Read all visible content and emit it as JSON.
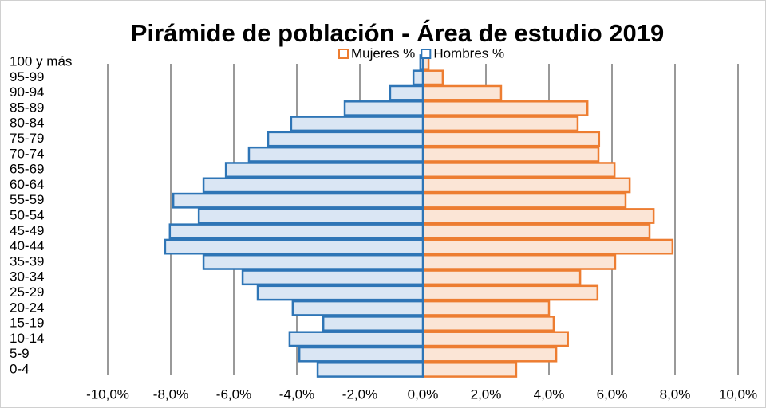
{
  "chart_data": {
    "type": "pyramid",
    "title": "Pirámide de población - Área de estudio 2019",
    "categories": [
      "0-4",
      "5-9",
      "10-14",
      "15-19",
      "20-24",
      "25-29",
      "30-34",
      "35-39",
      "40-44",
      "45-49",
      "50-54",
      "55-59",
      "60-64",
      "65-69",
      "70-74",
      "75-79",
      "80-84",
      "85-89",
      "90-94",
      "95-99",
      "100 y más"
    ],
    "series": [
      {
        "name": "Mujeres %",
        "color": "#ed7d31",
        "fill": "#fbe5d6",
        "values": [
          2.96,
          4.23,
          4.6,
          4.15,
          4.0,
          5.54,
          4.99,
          6.1,
          7.92,
          7.19,
          7.32,
          6.43,
          6.56,
          6.08,
          5.57,
          5.59,
          4.91,
          5.22,
          2.48,
          0.63,
          0.18
        ]
      },
      {
        "name": "Hombres %",
        "color": "#2e75b6",
        "fill": "#dae6f4",
        "values": [
          -3.34,
          -3.92,
          -4.23,
          -3.16,
          -4.13,
          -5.24,
          -5.72,
          -6.96,
          -8.18,
          -8.03,
          -7.11,
          -7.92,
          -6.96,
          -6.25,
          -5.52,
          -4.91,
          -4.18,
          -2.48,
          -1.04,
          -0.3,
          -0.08
        ]
      }
    ],
    "xlim": [
      -10,
      10
    ],
    "xticks": [
      {
        "value": -10,
        "label": "-10,0%"
      },
      {
        "value": -8,
        "label": "-8,0%"
      },
      {
        "value": -6,
        "label": "-6,0%"
      },
      {
        "value": -4,
        "label": "-4,0%"
      },
      {
        "value": -2,
        "label": "-2,0%"
      },
      {
        "value": 0,
        "label": "0,0%"
      },
      {
        "value": 2,
        "label": "2,0%"
      },
      {
        "value": 4,
        "label": "4,0%"
      },
      {
        "value": 6,
        "label": "6,0%"
      },
      {
        "value": 8,
        "label": "8,0%"
      },
      {
        "value": 10,
        "label": "10,0%"
      }
    ],
    "grid": true,
    "legend": "top"
  }
}
